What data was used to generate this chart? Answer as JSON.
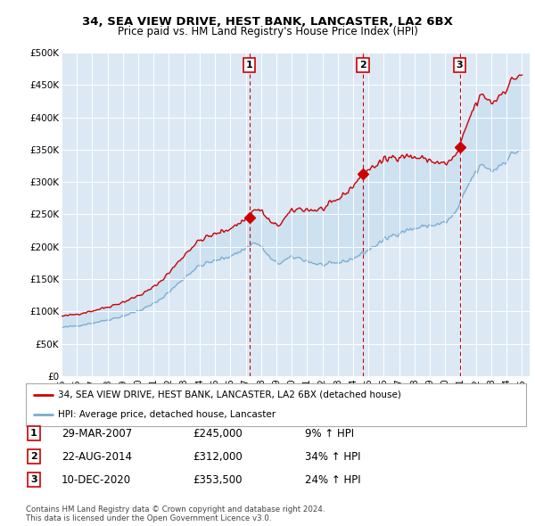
{
  "title1": "34, SEA VIEW DRIVE, HEST BANK, LANCASTER, LA2 6BX",
  "title2": "Price paid vs. HM Land Registry's House Price Index (HPI)",
  "background_color": "#dce9f5",
  "ylim": [
    0,
    500000
  ],
  "yticks": [
    0,
    50000,
    100000,
    150000,
    200000,
    250000,
    300000,
    350000,
    400000,
    450000,
    500000
  ],
  "ytick_labels": [
    "£0",
    "£50K",
    "£100K",
    "£150K",
    "£200K",
    "£250K",
    "£300K",
    "£350K",
    "£400K",
    "£450K",
    "£500K"
  ],
  "xlim_start": 1995.0,
  "xlim_end": 2025.5,
  "sales": [
    {
      "num": 1,
      "date": "29-MAR-2007",
      "price": 245000,
      "year": 2007.24,
      "pct": "9%",
      "dir": "↑"
    },
    {
      "num": 2,
      "date": "22-AUG-2014",
      "price": 312000,
      "year": 2014.64,
      "pct": "34%",
      "dir": "↑"
    },
    {
      "num": 3,
      "date": "10-DEC-2020",
      "price": 353500,
      "year": 2020.94,
      "pct": "24%",
      "dir": "↑"
    }
  ],
  "legend_line1": "34, SEA VIEW DRIVE, HEST BANK, LANCASTER, LA2 6BX (detached house)",
  "legend_line2": "HPI: Average price, detached house, Lancaster",
  "footer": "Contains HM Land Registry data © Crown copyright and database right 2024.\nThis data is licensed under the Open Government Licence v3.0.",
  "red_color": "#cc0000",
  "blue_color": "#7aabcf",
  "fill_color": "#c8dff0"
}
